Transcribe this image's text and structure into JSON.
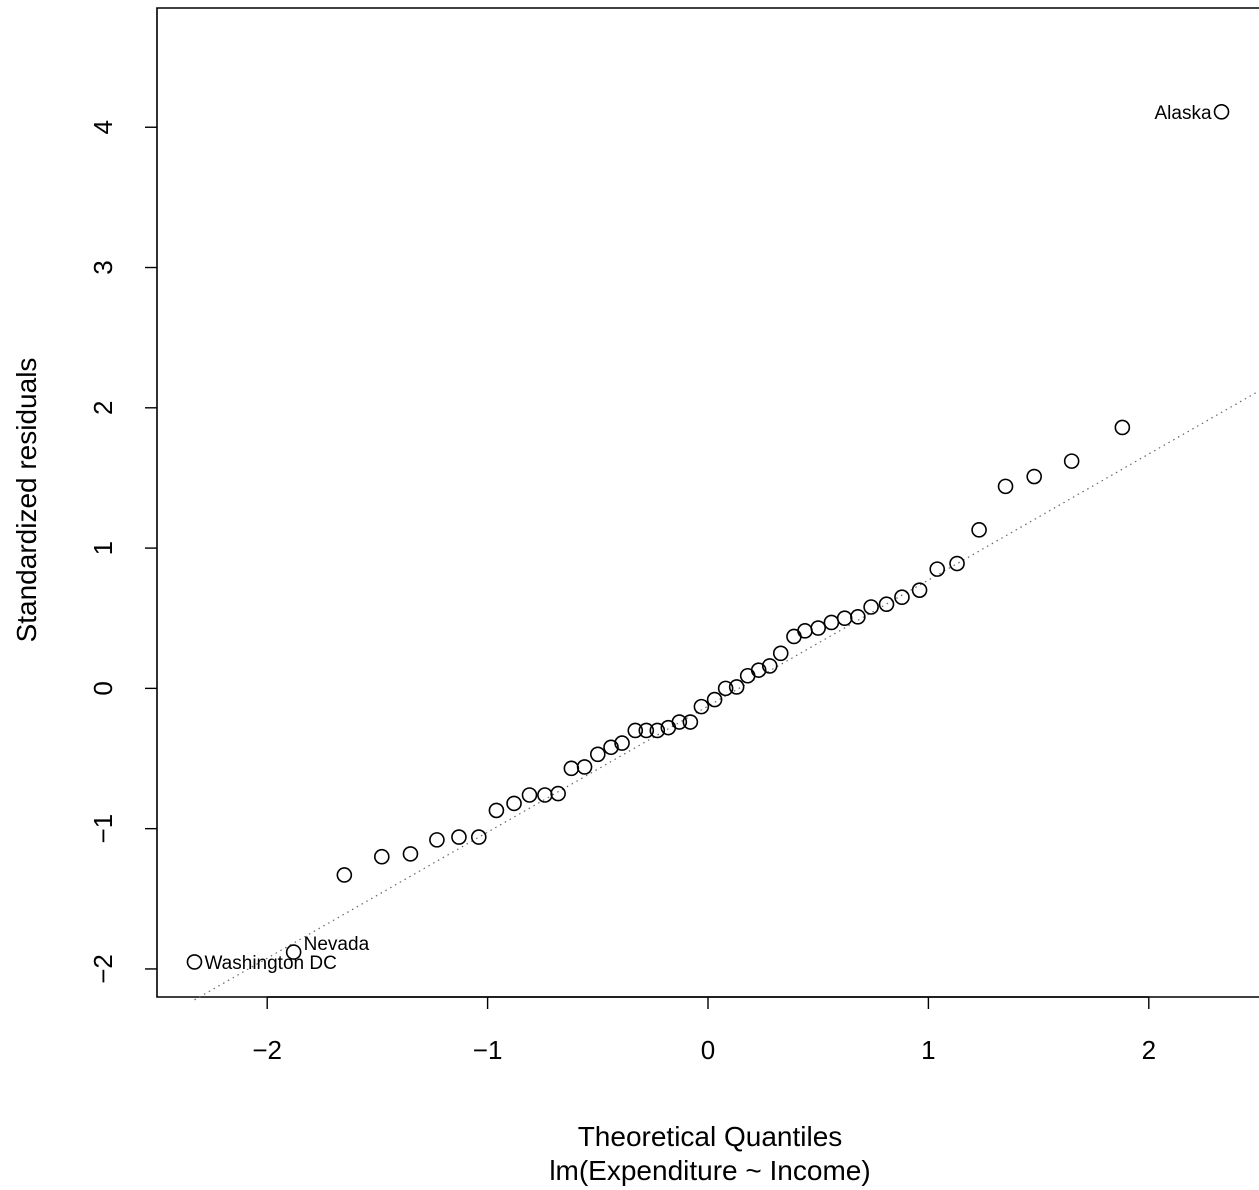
{
  "chart_data": {
    "type": "scatter",
    "title": "",
    "subtitle": "lm(Expenditure ~ Income)",
    "xlabel": "Theoretical Quantiles",
    "ylabel": "Standardized residuals",
    "xlim": [
      -2.5,
      2.5
    ],
    "ylim": [
      -2.2,
      4.85
    ],
    "xticks": [
      -2,
      -1,
      0,
      1,
      2
    ],
    "yticks": [
      -2,
      -1,
      0,
      1,
      2,
      3,
      4
    ],
    "xtick_labels": [
      "−2",
      "−1",
      "0",
      "1",
      "2"
    ],
    "ytick_labels": [
      "−2",
      "−1",
      "0",
      "1",
      "2",
      "3",
      "4"
    ],
    "grid": false,
    "reference_line": {
      "style": "dotted",
      "through": [
        [
          -2.33,
          -2.22
        ],
        [
          2.5,
          2.12
        ]
      ]
    },
    "series": [
      {
        "marker": "open-circle",
        "x": [
          -2.33,
          -1.88,
          -1.65,
          -1.48,
          -1.35,
          -1.23,
          -1.13,
          -1.04,
          -0.96,
          -0.88,
          -0.81,
          -0.74,
          -0.68,
          -0.62,
          -0.56,
          -0.5,
          -0.44,
          -0.39,
          -0.33,
          -0.28,
          -0.23,
          -0.18,
          -0.13,
          -0.08,
          -0.03,
          0.03,
          0.08,
          0.13,
          0.18,
          0.23,
          0.28,
          0.33,
          0.39,
          0.44,
          0.5,
          0.56,
          0.62,
          0.68,
          0.74,
          0.81,
          0.88,
          0.96,
          1.04,
          1.13,
          1.23,
          1.35,
          1.48,
          1.65,
          1.88,
          2.33
        ],
        "y": [
          -1.95,
          -1.88,
          -1.33,
          -1.2,
          -1.18,
          -1.08,
          -1.06,
          -1.06,
          -0.87,
          -0.82,
          -0.76,
          -0.76,
          -0.75,
          -0.57,
          -0.56,
          -0.47,
          -0.42,
          -0.39,
          -0.3,
          -0.3,
          -0.3,
          -0.28,
          -0.24,
          -0.24,
          -0.13,
          -0.08,
          0.0,
          0.01,
          0.09,
          0.13,
          0.16,
          0.25,
          0.37,
          0.41,
          0.43,
          0.47,
          0.5,
          0.51,
          0.58,
          0.6,
          0.65,
          0.7,
          0.85,
          0.89,
          1.13,
          1.44,
          1.51,
          1.62,
          1.86,
          4.11
        ]
      }
    ],
    "annotations": [
      {
        "text": "Washington DC",
        "x": -2.33,
        "y": -1.95,
        "side": "right"
      },
      {
        "text": "Nevada",
        "x": -1.88,
        "y": -1.88,
        "side": "right"
      },
      {
        "text": "Alaska",
        "x": 2.33,
        "y": 4.11,
        "side": "left"
      }
    ]
  }
}
